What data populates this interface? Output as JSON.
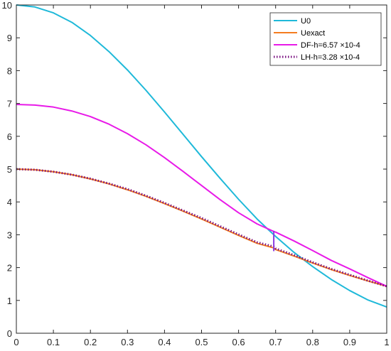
{
  "chart_data": {
    "type": "line",
    "title": "",
    "xlabel": "",
    "ylabel": "",
    "xlim": [
      0,
      1
    ],
    "ylim": [
      0,
      10
    ],
    "grid": false,
    "legend_position": "top-right",
    "x_ticks": [
      "0",
      "0.1",
      "0.2",
      "0.3",
      "0.4",
      "0.5",
      "0.6",
      "0.7",
      "0.8",
      "0.9",
      "1"
    ],
    "y_ticks": [
      "0",
      "1",
      "2",
      "3",
      "4",
      "5",
      "6",
      "7",
      "8",
      "9",
      "10"
    ],
    "x": [
      0,
      0.05,
      0.1,
      0.15,
      0.2,
      0.25,
      0.3,
      0.35,
      0.4,
      0.45,
      0.5,
      0.55,
      0.6,
      0.65,
      0.695,
      0.7,
      0.75,
      0.8,
      0.85,
      0.9,
      0.95,
      1
    ],
    "series": [
      {
        "name": "U0",
        "color": "#1FB9D9",
        "style": "solid",
        "values": [
          10.0,
          9.94,
          9.76,
          9.47,
          9.07,
          8.58,
          8.02,
          7.4,
          6.74,
          6.06,
          5.38,
          4.72,
          4.08,
          3.48,
          3.0,
          2.95,
          2.46,
          2.03,
          1.64,
          1.3,
          1.01,
          0.8
        ]
      },
      {
        "name": "Uexact",
        "color": "#F47C20",
        "style": "solid",
        "values": [
          5.0,
          4.98,
          4.92,
          4.83,
          4.7,
          4.55,
          4.37,
          4.17,
          3.95,
          3.72,
          3.48,
          3.23,
          2.98,
          2.74,
          2.6,
          2.55,
          2.35,
          2.14,
          1.94,
          1.76,
          1.59,
          1.43
        ]
      },
      {
        "name": "DF-h=6.57 ×10-4",
        "color": "#E81AE8",
        "style": "solid",
        "values": [
          6.97,
          6.95,
          6.89,
          6.77,
          6.6,
          6.37,
          6.08,
          5.74,
          5.35,
          4.93,
          4.5,
          4.07,
          3.67,
          3.33,
          3.1,
          3.08,
          2.81,
          2.52,
          2.22,
          1.96,
          1.69,
          1.43
        ]
      },
      {
        "name": "LH-h=3.28 ×10-4",
        "color": "#7A0F80",
        "style": "dotted",
        "values": [
          5.0,
          4.98,
          4.92,
          4.83,
          4.71,
          4.56,
          4.39,
          4.19,
          3.97,
          3.74,
          3.51,
          3.26,
          3.01,
          2.77,
          2.64,
          2.58,
          2.38,
          2.16,
          1.96,
          1.78,
          1.6,
          1.43
        ]
      }
    ],
    "annotations": {
      "shock_x": 0.695,
      "shock_y_range": [
        2.5,
        3.12
      ]
    }
  }
}
